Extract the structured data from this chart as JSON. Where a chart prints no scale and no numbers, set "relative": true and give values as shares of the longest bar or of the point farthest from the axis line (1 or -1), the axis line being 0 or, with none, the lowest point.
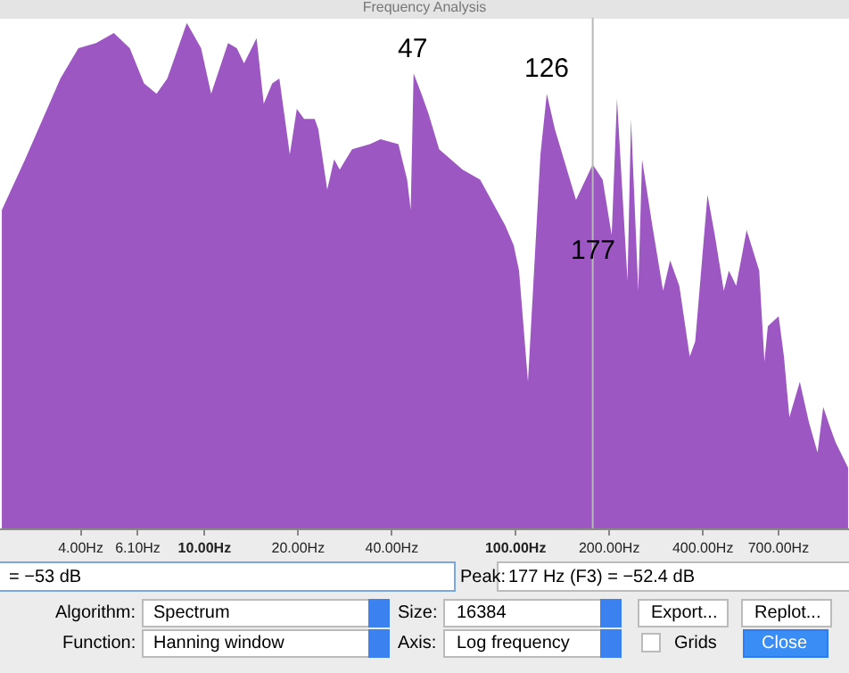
{
  "chart_data": {
    "type": "area",
    "title": "Frequency Analysis",
    "relative": true,
    "color": "#9c57c3",
    "x": [
      2.23,
      2.65,
      3.44,
      3.93,
      4.48,
      5.11,
      5.75,
      6.39,
      7.01,
      7.59,
      8.77,
      9.75,
      10.5,
      11.9,
      12.7,
      13.4,
      14.7,
      15.5,
      16.5,
      17.4,
      18.8,
      19.8,
      20.9,
      22.6,
      23.2,
      24.8,
      26.1,
      27.2,
      29.8,
      34.0,
      36.8,
      42.0,
      44.8,
      46.0,
      47,
      49.8,
      52.5,
      56.8,
      67.5,
      76.9,
      92.5,
      98.6,
      102.6,
      109.6,
      120.2,
      126,
      133.7,
      156.4,
      177,
      190.5,
      203.7,
      211.8,
      229,
      235,
      248,
      255,
      275,
      298,
      314,
      336,
      363,
      378,
      414,
      437,
      467,
      485,
      512,
      553,
      607,
      631,
      647,
      701,
      729,
      759,
      820,
      877,
      935,
      975,
      1026,
      1069,
      1172
    ],
    "values": [
      0.63,
      0.73,
      0.89,
      0.95,
      0.96,
      0.98,
      0.95,
      0.88,
      0.86,
      0.89,
      1.0,
      0.95,
      0.86,
      0.96,
      0.95,
      0.92,
      0.97,
      0.84,
      0.88,
      0.89,
      0.74,
      0.83,
      0.81,
      0.81,
      0.79,
      0.67,
      0.73,
      0.71,
      0.75,
      0.76,
      0.77,
      0.76,
      0.69,
      0.63,
      0.9,
      0.86,
      0.82,
      0.75,
      0.71,
      0.69,
      0.6,
      0.56,
      0.51,
      0.29,
      0.74,
      0.86,
      0.79,
      0.65,
      0.72,
      0.69,
      0.58,
      0.85,
      0.49,
      0.81,
      0.47,
      0.73,
      0.6,
      0.47,
      0.53,
      0.48,
      0.34,
      0.37,
      0.66,
      0.58,
      0.47,
      0.51,
      0.48,
      0.59,
      0.51,
      0.33,
      0.4,
      0.42,
      0.34,
      0.22,
      0.29,
      0.21,
      0.15,
      0.24,
      0.2,
      0.17,
      0.12
    ],
    "log": "x",
    "grid": false,
    "legend": false,
    "xlim": [
      2.2,
      1180
    ],
    "xticks": [
      {
        "value": 4,
        "label": "4.00Hz"
      },
      {
        "value": 6.1,
        "label": "6.10Hz"
      },
      {
        "value": 10,
        "label": "10.00Hz"
      },
      {
        "value": 20,
        "label": "20.00Hz"
      },
      {
        "value": 40,
        "label": "40.00Hz"
      },
      {
        "value": 100,
        "label": "100.00Hz"
      },
      {
        "value": 200,
        "label": "200.00Hz"
      },
      {
        "value": 400,
        "label": "400.00Hz"
      },
      {
        "value": 700,
        "label": "700.00Hz"
      }
    ],
    "ref_lines": [
      {
        "axis": "x",
        "value": 177,
        "color": "#b8b8b8"
      }
    ],
    "annotations": [
      {
        "text": "47",
        "x": 47,
        "y": 0.9
      },
      {
        "text": "126",
        "x": 126,
        "y": 0.86
      },
      {
        "text": "177",
        "x": 177,
        "y": 0.5
      },
      "= −53 dB",
      "Peak:",
      "177 Hz (F3) = −52.4 dB",
      "Algorithm:",
      "Spectrum",
      "Size:",
      "16384",
      "Export...",
      "Replot...",
      "Function:",
      "Hanning window",
      "Axis:",
      "Log frequency",
      "Grids",
      "Close"
    ]
  }
}
